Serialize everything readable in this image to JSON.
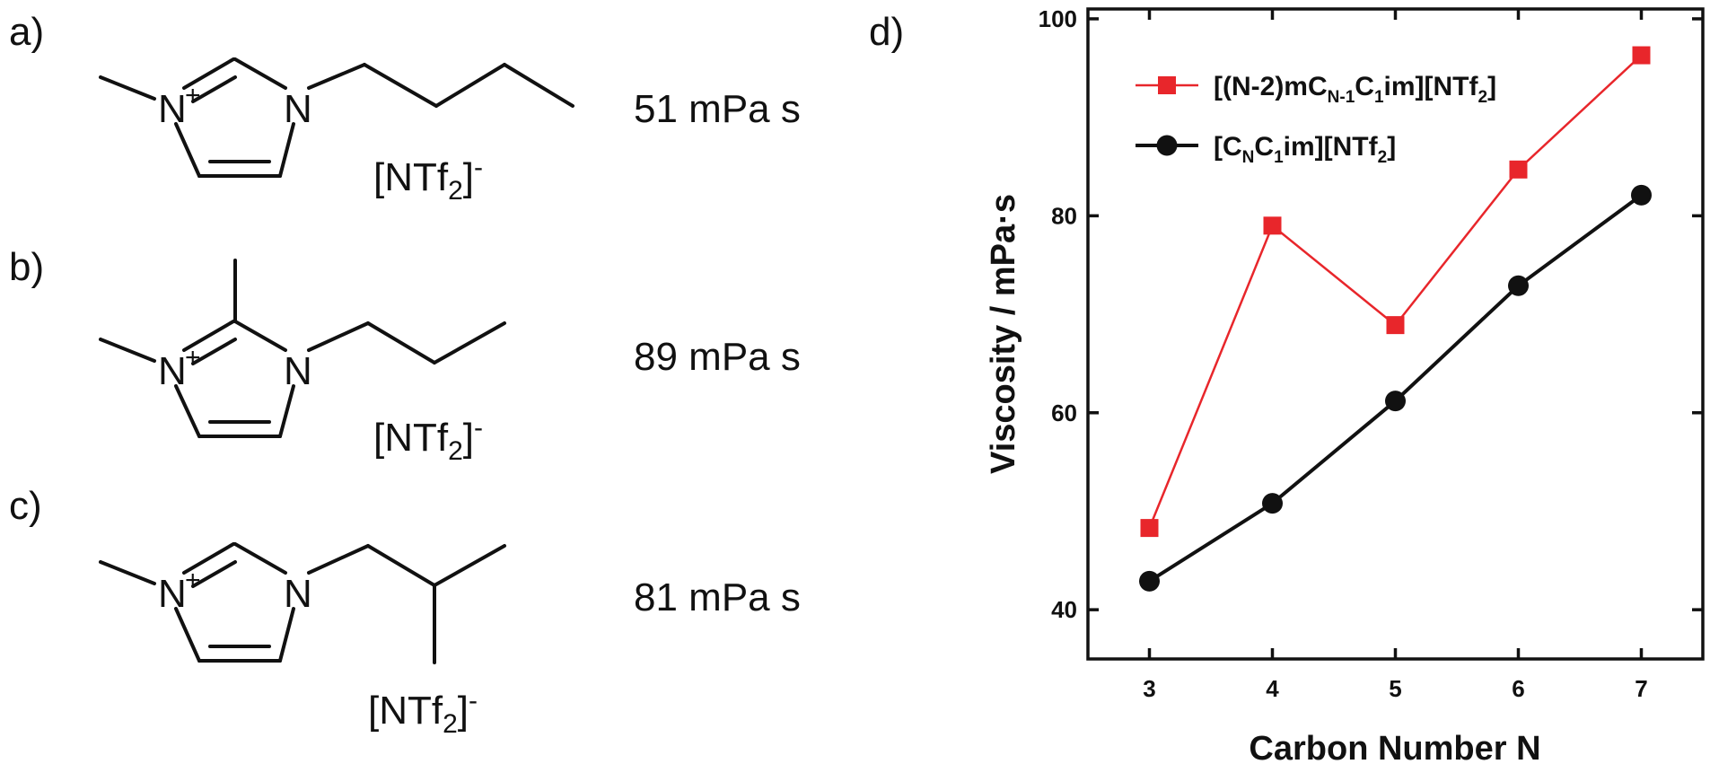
{
  "panels": {
    "a": {
      "letter": "a)",
      "viscosity": "51 mPa s"
    },
    "b": {
      "letter": "b)",
      "viscosity": "89 mPa s"
    },
    "c": {
      "letter": "c)",
      "viscosity": "81 mPa s"
    },
    "d": {
      "letter": "d)"
    }
  },
  "molecule": {
    "atom_n": "N",
    "charge": "+",
    "anion_main": "[NTf",
    "anion_sub": "2",
    "anion_close": "]",
    "anion_charge": "-"
  },
  "chart_data": {
    "type": "line",
    "xlabel": "Carbon Number N",
    "ylabel": "Viscosity / mPa·s",
    "xlim": [
      2.5,
      7.5
    ],
    "ylim": [
      35,
      101
    ],
    "xticks": [
      3,
      4,
      5,
      6,
      7
    ],
    "yticks": [
      40,
      60,
      80,
      100
    ],
    "grid": false,
    "legend_position": "top-left",
    "series": [
      {
        "name_parts": [
          {
            "t": "[(N-2)mC",
            "sub": false
          },
          {
            "t": "N-1",
            "sub": true
          },
          {
            "t": "C",
            "sub": false
          },
          {
            "t": "1",
            "sub": true
          },
          {
            "t": "im][NTf",
            "sub": false
          },
          {
            "t": "2",
            "sub": true
          },
          {
            "t": "]",
            "sub": false
          }
        ],
        "color": "#e8262b",
        "marker": "square",
        "x": [
          3,
          4,
          5,
          6,
          7
        ],
        "y": [
          48.3,
          79.0,
          68.9,
          84.7,
          96.3
        ]
      },
      {
        "name_parts": [
          {
            "t": "[C",
            "sub": false
          },
          {
            "t": "N",
            "sub": true
          },
          {
            "t": "C",
            "sub": false
          },
          {
            "t": "1",
            "sub": true
          },
          {
            "t": "im][NTf",
            "sub": false
          },
          {
            "t": "2",
            "sub": true
          },
          {
            "t": "]",
            "sub": false
          }
        ],
        "color": "#111111",
        "marker": "circle",
        "x": [
          3,
          4,
          5,
          6,
          7
        ],
        "y": [
          42.9,
          50.8,
          61.2,
          72.9,
          82.1
        ]
      }
    ]
  }
}
